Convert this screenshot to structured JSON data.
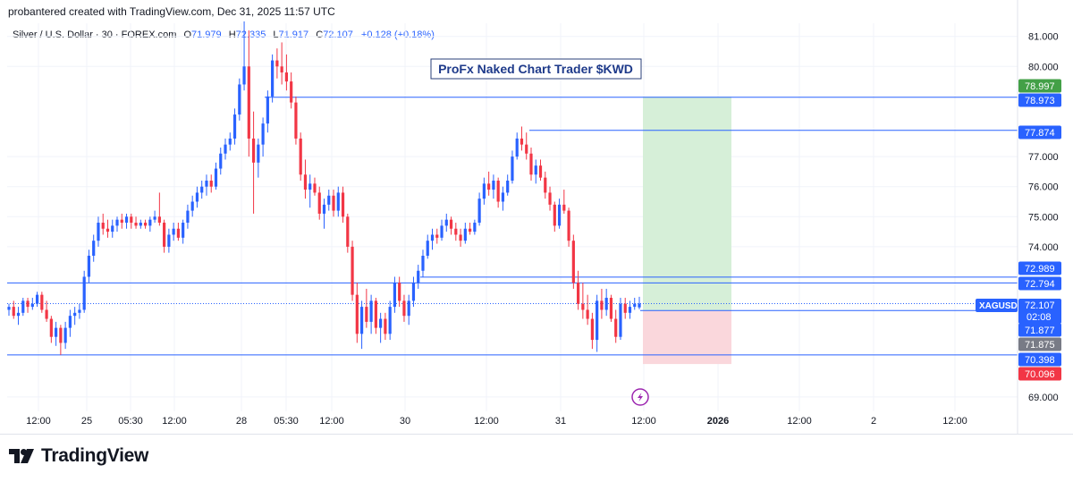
{
  "header": {
    "credit": "probantered created with TradingView.com, Dec 31, 2025 11:57 UTC",
    "symbol": "Silver / U.S. Dollar · 30 · FOREX.com",
    "ohlc": {
      "open_label": "O",
      "open": "71.979",
      "high_label": "H",
      "high": "72.335",
      "low_label": "L",
      "low": "71.917",
      "close_label": "C",
      "close": "72.107",
      "change": "+0.128 (+0.18%)"
    }
  },
  "annotation": {
    "text": "ProFx Naked Chart Trader $KWD"
  },
  "branding": {
    "name": "TradingView",
    "logo": "tradingview-logo-icon"
  },
  "colors": {
    "up": "#2962ff",
    "down": "#f23645",
    "level_line": "#2962ff",
    "target_zone": "#d6efd8",
    "stop_zone": "#fad7dc",
    "green_label": "#43a047",
    "red_label": "#f23645",
    "gray_label": "#787b86"
  },
  "chart_data": {
    "type": "candlestick",
    "y_range": [
      68.5,
      81.5
    ],
    "y_ticks": [
      "81.000",
      "80.000",
      "77.000",
      "76.000",
      "75.000",
      "74.000",
      "69.000"
    ],
    "x_ticks": [
      "12:00",
      "25",
      "05:30",
      "12:00",
      "28",
      "05:30",
      "12:00",
      "30",
      "12:00",
      "31",
      "12:00",
      "2026",
      "12:00",
      "2",
      "12:00"
    ],
    "bold_x_ticks": [
      "2026"
    ],
    "price_labels": [
      {
        "value": 78.997,
        "text": "78.997",
        "style": "green"
      },
      {
        "value": 78.973,
        "text": "78.973",
        "style": "blue"
      },
      {
        "value": 77.874,
        "text": "77.874",
        "style": "blue"
      },
      {
        "value": 72.989,
        "text": "72.989",
        "style": "blue"
      },
      {
        "value": 72.794,
        "text": "72.794",
        "style": "blue"
      },
      {
        "value": 72.107,
        "text": "72.107",
        "style": "current",
        "tag": "XAGUSD",
        "sub": "02:08"
      },
      {
        "value": 71.877,
        "text": "71.877",
        "style": "blue"
      },
      {
        "value": 71.875,
        "text": "71.875",
        "style": "gray"
      },
      {
        "value": 70.398,
        "text": "70.398",
        "style": "blue"
      },
      {
        "value": 70.096,
        "text": "70.096",
        "style": "red"
      }
    ],
    "horizontal_levels": [
      78.973,
      77.874,
      72.989,
      72.794,
      71.877,
      70.398
    ],
    "last_price": 72.107,
    "position": {
      "entry": 71.877,
      "target": 78.997,
      "stop": 70.096,
      "start_date": "2025-12-31 12:00",
      "end_date": "2026-01-01 09:00"
    },
    "series": [
      {
        "name": "XAGUSD",
        "ohlc": [
          [
            71.9,
            72.1,
            71.7,
            72.0
          ],
          [
            72.0,
            72.2,
            71.6,
            71.7
          ],
          [
            71.7,
            72.0,
            71.4,
            71.8
          ],
          [
            71.8,
            72.3,
            71.7,
            72.2
          ],
          [
            72.2,
            72.3,
            71.8,
            72.0
          ],
          [
            72.0,
            72.3,
            71.9,
            72.1
          ],
          [
            72.1,
            72.5,
            72.0,
            72.4
          ],
          [
            72.4,
            72.5,
            71.8,
            71.9
          ],
          [
            71.9,
            72.2,
            71.5,
            71.6
          ],
          [
            71.6,
            71.7,
            70.8,
            71.0
          ],
          [
            71.0,
            71.5,
            70.7,
            71.3
          ],
          [
            71.3,
            71.4,
            70.4,
            70.8
          ],
          [
            70.8,
            71.5,
            70.6,
            71.3
          ],
          [
            71.3,
            71.9,
            71.0,
            71.7
          ],
          [
            71.7,
            72.0,
            71.4,
            71.8
          ],
          [
            71.8,
            72.1,
            71.6,
            71.9
          ],
          [
            71.9,
            73.2,
            71.8,
            73.0
          ],
          [
            73.0,
            73.9,
            72.8,
            73.7
          ],
          [
            73.7,
            74.4,
            73.5,
            74.2
          ],
          [
            74.2,
            75.0,
            74.0,
            74.8
          ],
          [
            74.8,
            75.1,
            74.4,
            74.6
          ],
          [
            74.6,
            74.9,
            74.3,
            74.5
          ],
          [
            74.5,
            74.9,
            74.3,
            74.7
          ],
          [
            74.7,
            75.0,
            74.5,
            74.9
          ],
          [
            74.9,
            75.1,
            74.6,
            74.8
          ],
          [
            74.8,
            75.1,
            74.6,
            75.0
          ],
          [
            75.0,
            75.1,
            74.6,
            74.8
          ],
          [
            74.8,
            75.0,
            74.6,
            74.7
          ],
          [
            74.7,
            74.9,
            74.6,
            74.8
          ],
          [
            74.8,
            74.9,
            74.6,
            74.7
          ],
          [
            74.7,
            75.0,
            74.5,
            74.9
          ],
          [
            74.9,
            75.2,
            74.8,
            75.0
          ],
          [
            75.0,
            75.8,
            74.7,
            74.8
          ],
          [
            74.8,
            74.9,
            73.8,
            74.0
          ],
          [
            74.0,
            74.6,
            73.8,
            74.4
          ],
          [
            74.4,
            74.8,
            74.2,
            74.6
          ],
          [
            74.6,
            74.8,
            74.2,
            74.3
          ],
          [
            74.3,
            74.9,
            74.1,
            74.8
          ],
          [
            74.8,
            75.4,
            74.6,
            75.2
          ],
          [
            75.2,
            75.7,
            75.0,
            75.5
          ],
          [
            75.5,
            76.0,
            75.3,
            75.8
          ],
          [
            75.8,
            76.2,
            75.6,
            76.0
          ],
          [
            76.0,
            76.4,
            75.7,
            76.2
          ],
          [
            76.2,
            76.4,
            75.8,
            76.0
          ],
          [
            76.0,
            76.8,
            75.9,
            76.6
          ],
          [
            76.6,
            77.3,
            76.4,
            77.1
          ],
          [
            77.1,
            77.6,
            76.9,
            77.4
          ],
          [
            77.4,
            77.8,
            77.2,
            77.6
          ],
          [
            77.6,
            78.6,
            77.4,
            78.4
          ],
          [
            78.4,
            79.6,
            78.2,
            79.4
          ],
          [
            79.4,
            81.5,
            79.2,
            80.0
          ],
          [
            80.0,
            81.2,
            77.0,
            77.6
          ],
          [
            77.6,
            78.5,
            75.1,
            76.8
          ],
          [
            76.8,
            77.6,
            76.3,
            77.4
          ],
          [
            77.4,
            78.3,
            77.0,
            78.1
          ],
          [
            78.1,
            79.2,
            77.8,
            79.0
          ],
          [
            79.0,
            80.4,
            78.8,
            80.2
          ],
          [
            80.2,
            80.6,
            79.6,
            80.0
          ],
          [
            80.0,
            80.8,
            79.4,
            79.8
          ],
          [
            79.8,
            80.4,
            79.2,
            79.5
          ],
          [
            79.5,
            79.8,
            78.6,
            78.8
          ],
          [
            78.8,
            79.0,
            77.4,
            77.6
          ],
          [
            77.6,
            77.8,
            76.2,
            76.4
          ],
          [
            76.4,
            76.9,
            75.6,
            75.9
          ],
          [
            75.9,
            76.4,
            75.3,
            76.1
          ],
          [
            76.1,
            76.3,
            75.7,
            75.8
          ],
          [
            75.8,
            76.0,
            74.9,
            75.1
          ],
          [
            75.1,
            75.6,
            74.6,
            75.4
          ],
          [
            75.4,
            75.9,
            75.2,
            75.7
          ],
          [
            75.7,
            75.9,
            75.0,
            75.2
          ],
          [
            75.2,
            76.0,
            75.0,
            75.8
          ],
          [
            75.8,
            76.0,
            74.8,
            75.0
          ],
          [
            75.0,
            75.1,
            73.8,
            74.0
          ],
          [
            74.0,
            74.2,
            72.2,
            72.4
          ],
          [
            72.4,
            72.8,
            70.8,
            71.1
          ],
          [
            71.1,
            72.2,
            70.6,
            72.0
          ],
          [
            72.0,
            72.6,
            71.3,
            71.5
          ],
          [
            71.5,
            72.4,
            71.1,
            72.2
          ],
          [
            72.2,
            72.3,
            71.1,
            71.3
          ],
          [
            71.3,
            71.8,
            70.8,
            71.6
          ],
          [
            71.6,
            71.8,
            70.9,
            71.1
          ],
          [
            71.1,
            72.2,
            70.9,
            72.0
          ],
          [
            72.0,
            73.0,
            71.8,
            72.8
          ],
          [
            72.8,
            73.0,
            72.0,
            72.2
          ],
          [
            72.2,
            72.4,
            71.5,
            71.7
          ],
          [
            71.7,
            72.4,
            71.4,
            72.2
          ],
          [
            72.2,
            73.0,
            72.0,
            72.8
          ],
          [
            72.8,
            73.4,
            72.6,
            73.2
          ],
          [
            73.2,
            73.9,
            73.0,
            73.7
          ],
          [
            73.7,
            74.4,
            73.6,
            74.2
          ],
          [
            74.2,
            74.6,
            73.9,
            74.4
          ],
          [
            74.4,
            74.6,
            74.1,
            74.3
          ],
          [
            74.3,
            74.9,
            74.2,
            74.7
          ],
          [
            74.7,
            75.1,
            74.5,
            74.9
          ],
          [
            74.9,
            75.0,
            74.4,
            74.6
          ],
          [
            74.6,
            74.8,
            74.2,
            74.4
          ],
          [
            74.4,
            74.6,
            74.0,
            74.2
          ],
          [
            74.2,
            74.8,
            74.1,
            74.6
          ],
          [
            74.6,
            74.8,
            74.4,
            74.5
          ],
          [
            74.5,
            74.9,
            74.4,
            74.8
          ],
          [
            74.8,
            75.8,
            74.7,
            75.6
          ],
          [
            75.6,
            76.3,
            75.4,
            76.1
          ],
          [
            76.1,
            76.5,
            75.7,
            75.9
          ],
          [
            75.9,
            76.4,
            75.6,
            76.2
          ],
          [
            76.2,
            76.3,
            75.3,
            75.5
          ],
          [
            75.5,
            76.0,
            75.2,
            75.8
          ],
          [
            75.8,
            76.4,
            75.7,
            76.2
          ],
          [
            76.2,
            77.2,
            76.1,
            77.0
          ],
          [
            77.0,
            77.8,
            76.9,
            77.6
          ],
          [
            77.6,
            78.0,
            77.2,
            77.4
          ],
          [
            77.4,
            77.8,
            76.9,
            77.1
          ],
          [
            77.1,
            77.3,
            76.2,
            76.4
          ],
          [
            76.4,
            76.9,
            76.1,
            76.7
          ],
          [
            76.7,
            76.9,
            76.2,
            76.3
          ],
          [
            76.3,
            76.5,
            75.6,
            75.8
          ],
          [
            75.8,
            76.0,
            75.2,
            75.4
          ],
          [
            75.4,
            75.5,
            74.5,
            74.7
          ],
          [
            74.7,
            75.6,
            74.6,
            75.4
          ],
          [
            75.4,
            75.9,
            75.1,
            75.2
          ],
          [
            75.2,
            75.3,
            74.0,
            74.2
          ],
          [
            74.2,
            74.4,
            72.6,
            72.8
          ],
          [
            72.8,
            73.2,
            71.9,
            72.1
          ],
          [
            72.1,
            72.8,
            71.6,
            71.9
          ],
          [
            71.9,
            72.4,
            71.4,
            71.6
          ],
          [
            71.6,
            71.8,
            70.6,
            70.9
          ],
          [
            70.9,
            72.4,
            70.5,
            72.2
          ],
          [
            72.2,
            72.6,
            71.6,
            71.9
          ],
          [
            71.9,
            72.6,
            71.7,
            72.3
          ],
          [
            72.3,
            72.4,
            71.5,
            71.6
          ],
          [
            71.6,
            71.9,
            70.8,
            71.0
          ],
          [
            71.0,
            72.3,
            70.9,
            72.1
          ],
          [
            72.1,
            72.3,
            71.6,
            71.8
          ],
          [
            71.8,
            72.2,
            71.6,
            72.0
          ],
          [
            72.0,
            72.3,
            71.9,
            72.1
          ],
          [
            71.98,
            72.335,
            71.917,
            72.107
          ]
        ]
      }
    ]
  }
}
